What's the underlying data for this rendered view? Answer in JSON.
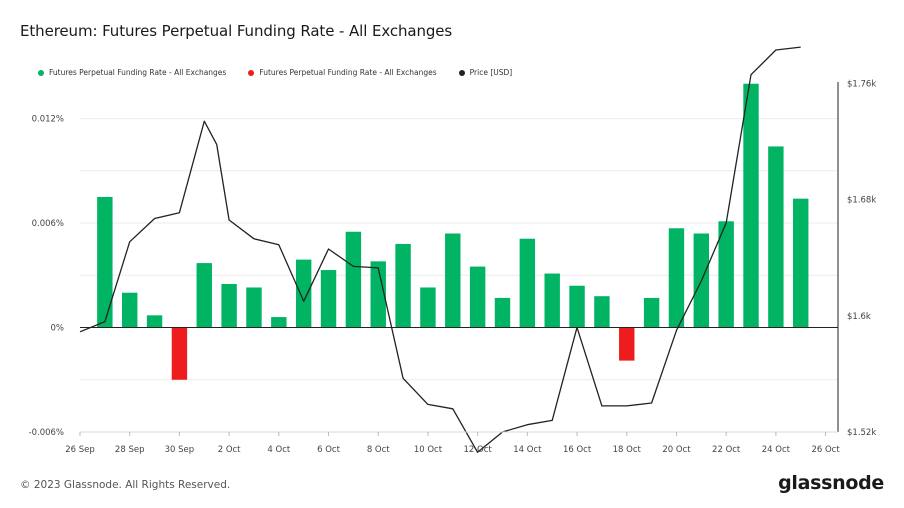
{
  "title": "Ethereum: Futures Perpetual Funding Rate - All Exchanges",
  "footer": "© 2023 Glassnode. All Rights Reserved.",
  "brand": "glassnode",
  "legend": [
    {
      "label": "Futures Perpetual Funding Rate - All Exchanges",
      "color": "#00b464"
    },
    {
      "label": "Futures Perpetual Funding Rate - All Exchanges",
      "color": "#ee1c1c"
    },
    {
      "label": "Price [USD]",
      "color": "#222222"
    }
  ],
  "chart_data": {
    "type": "bar",
    "x_tick_labels": [
      "26 Sep",
      "28 Sep",
      "30 Sep",
      "2 Oct",
      "4 Oct",
      "6 Oct",
      "8 Oct",
      "10 Oct",
      "12 Oct",
      "14 Oct",
      "16 Oct",
      "18 Oct",
      "20 Oct",
      "22 Oct",
      "24 Oct",
      "26 Oct"
    ],
    "y_left": {
      "ticks": [
        -0.006,
        0,
        0.006,
        0.012
      ],
      "labels": [
        "-0.006%",
        "0%",
        "0.006%",
        "0.012%"
      ],
      "range": [
        -0.006,
        0.0141
      ]
    },
    "y_right": {
      "ticks": [
        1520,
        1600,
        1680,
        1760
      ],
      "labels": [
        "$1.52k",
        "$1.6k",
        "$1.68k",
        "$1.76k"
      ],
      "range": [
        1520,
        1761
      ]
    },
    "x_day_range": [
      0,
      30.5
    ],
    "positive_color": "#00b464",
    "negative_color": "#ee1c1c",
    "price_color": "#222222",
    "series": [
      {
        "name": "Futures Perpetual Funding Rate - All Exchanges",
        "days": [
          1,
          2,
          3,
          4,
          5,
          6,
          7,
          8,
          9,
          10,
          11,
          12,
          13,
          14,
          15,
          16,
          17,
          18,
          19,
          20,
          21,
          22,
          23,
          24,
          25,
          26,
          27,
          28,
          29
        ],
        "values": [
          0.0075,
          0.002,
          0.0007,
          -0.003,
          0.0037,
          0.0025,
          0.0023,
          0.0006,
          0.0039,
          0.0033,
          0.0055,
          0.0038,
          0.0048,
          0.0023,
          0.0054,
          0.0035,
          0.0017,
          0.0051,
          0.0031,
          0.0024,
          0.0018,
          -0.0019,
          0.0017,
          0.0057,
          0.0054,
          0.0061,
          0.014,
          0.0104,
          0.0074
        ]
      },
      {
        "name": "Price [USD]",
        "days": [
          0,
          1,
          2,
          3,
          4,
          5,
          5.5,
          6,
          7,
          8,
          9,
          10,
          11,
          12,
          13,
          14,
          15,
          16,
          17,
          18,
          19,
          20,
          21,
          22,
          23,
          24,
          25,
          26,
          27,
          28,
          29
        ],
        "values": [
          1589,
          1596,
          1651,
          1667,
          1671,
          1734,
          1718,
          1666,
          1653,
          1649,
          1610,
          1646,
          1634,
          1633,
          1557,
          1539,
          1536,
          1506,
          1520,
          1525,
          1528,
          1592,
          1538,
          1538,
          1540,
          1590,
          1624,
          1664,
          1766,
          1783,
          1785
        ]
      }
    ]
  }
}
